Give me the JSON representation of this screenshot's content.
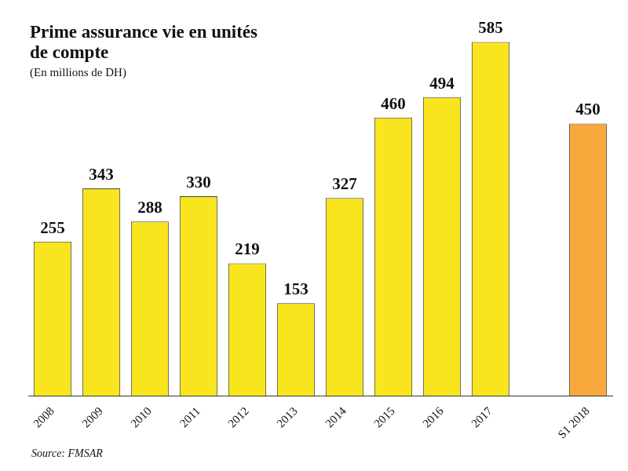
{
  "chart_data": {
    "type": "bar",
    "title": "Prime assurance vie en unités de compte",
    "subtitle": "(En millions de DH)",
    "source": "Source: FMSAR",
    "categories": [
      "2008",
      "2009",
      "2010",
      "2011",
      "2012",
      "2013",
      "2014",
      "2015",
      "2016",
      "2017",
      null,
      "S1 2018"
    ],
    "values": [
      255,
      343,
      288,
      330,
      219,
      153,
      327,
      460,
      494,
      585,
      null,
      450
    ],
    "colors": [
      "#f8e51e",
      "#f8e51e",
      "#f8e51e",
      "#f8e51e",
      "#f8e51e",
      "#f8e51e",
      "#f8e51e",
      "#f8e51e",
      "#f8e51e",
      "#f8e51e",
      "#f8e51e",
      "#f7a93c"
    ],
    "ylim": [
      0,
      600
    ],
    "grid": false,
    "data_labels": true,
    "tick_labels": "x"
  }
}
